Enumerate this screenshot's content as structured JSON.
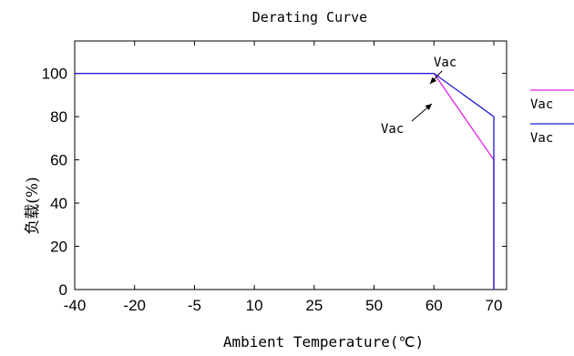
{
  "chart_data": {
    "type": "line",
    "title": "Derating Curve",
    "xlabel": "Ambient Temperature(℃)",
    "ylabel": "负载(%)",
    "x_categories": [
      "-40",
      "-20",
      "-5",
      "10",
      "25",
      "50",
      "60",
      "70"
    ],
    "ylim": [
      0,
      115
    ],
    "yticks": [
      0,
      20,
      40,
      60,
      80,
      100
    ],
    "grid": false,
    "legend_position": "right",
    "series": [
      {
        "name": "Vac",
        "color": "#e020e0",
        "points": [
          [
            "-40",
            100
          ],
          [
            "60",
            100
          ],
          [
            "70",
            60
          ],
          [
            "70",
            0
          ]
        ]
      },
      {
        "name": "Vac",
        "color": "#1a1ad0",
        "points": [
          [
            "-40",
            100
          ],
          [
            "60",
            100
          ],
          [
            "70",
            80
          ],
          [
            "70",
            0
          ]
        ]
      }
    ],
    "annotations": [
      {
        "text": "Vac",
        "series_index": 1,
        "at": [
          "65",
          90
        ]
      },
      {
        "text": "Vac",
        "series_index": 0,
        "at": [
          "65",
          80
        ]
      }
    ]
  }
}
